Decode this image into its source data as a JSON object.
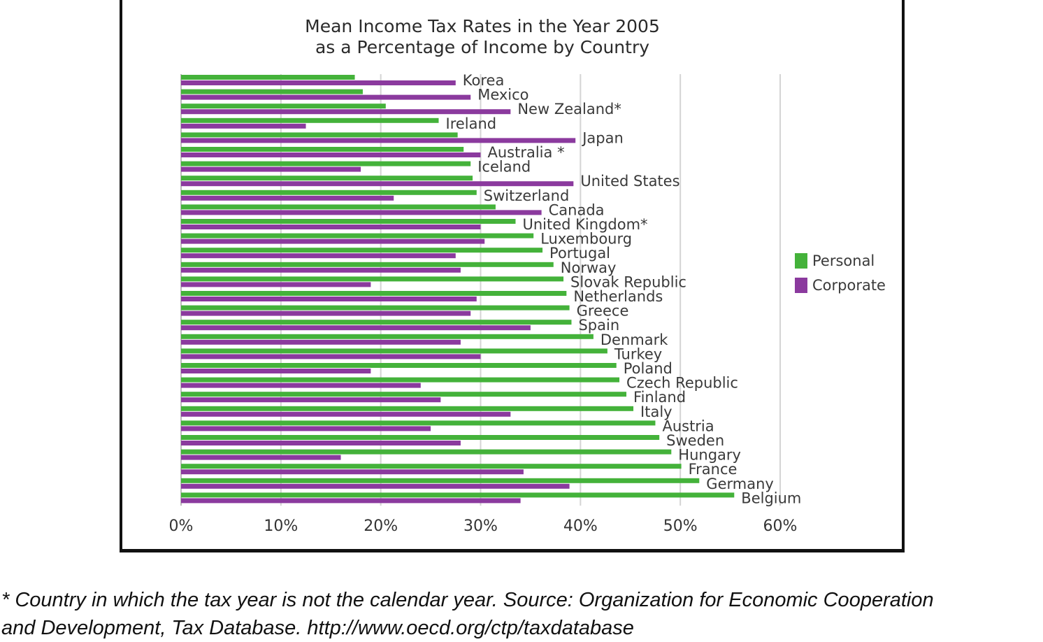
{
  "chart_data": {
    "type": "bar",
    "orientation": "horizontal",
    "title": [
      "Mean Income Tax Rates in the Year 2005",
      "as a Percentage of Income by Country"
    ],
    "xlabel": "",
    "ylabel": "",
    "xlim": [
      0,
      60
    ],
    "ticks": [
      "0%",
      "10%",
      "20%",
      "30%",
      "40%",
      "50%",
      "60%"
    ],
    "grid": true,
    "legend_position": "right",
    "categories": [
      "Korea",
      "Mexico",
      "New Zealand*",
      "Ireland",
      "Japan",
      "Australia *",
      "Iceland",
      "United States",
      "Switzerland",
      "Canada",
      "United Kingdom*",
      "Luxembourg",
      "Portugal",
      "Norway",
      "Slovak Republic",
      "Netherlands",
      "Greece",
      "Spain",
      "Denmark",
      "Turkey",
      "Poland",
      "Czech Republic",
      "Finland",
      "Italy",
      "Austria",
      "Sweden",
      "Hungary",
      "France",
      "Germany",
      "Belgium"
    ],
    "series": [
      {
        "name": "Personal",
        "color": "#44b23a",
        "values": [
          17.4,
          18.2,
          20.5,
          25.8,
          27.7,
          28.3,
          29.0,
          29.2,
          29.6,
          31.5,
          33.5,
          35.3,
          36.2,
          37.3,
          38.3,
          38.6,
          38.9,
          39.1,
          41.3,
          42.7,
          43.6,
          43.9,
          44.6,
          45.3,
          47.5,
          47.9,
          49.1,
          50.1,
          51.9,
          55.4
        ]
      },
      {
        "name": "Corporate",
        "color": "#8b3a9e",
        "values": [
          27.5,
          29.0,
          33.0,
          12.5,
          39.5,
          30.0,
          18.0,
          39.3,
          21.3,
          36.1,
          30.0,
          30.4,
          27.5,
          28.0,
          19.0,
          29.6,
          29.0,
          35.0,
          28.0,
          30.0,
          19.0,
          24.0,
          26.0,
          33.0,
          25.0,
          28.0,
          16.0,
          34.3,
          38.9,
          34.0
        ]
      }
    ]
  },
  "footnote": {
    "line1": "* Country in which the tax year is not the calendar year. Source: Organization for Economic Cooperation",
    "line2": "and Development,  Tax Database. http://www.oecd.org/ctp/taxdatabase"
  }
}
